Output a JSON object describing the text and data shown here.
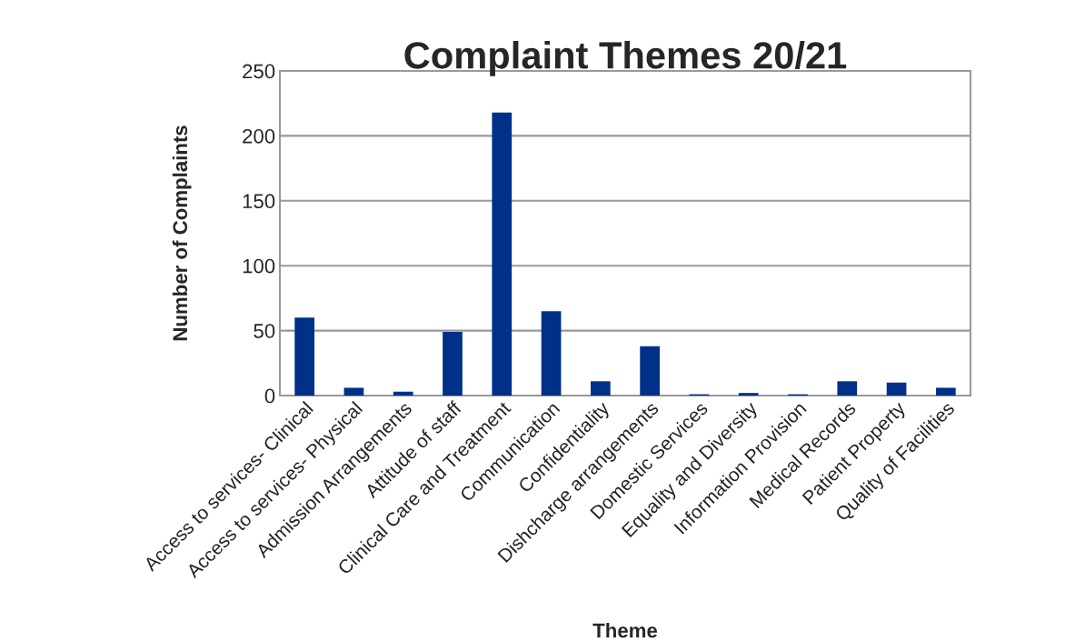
{
  "chart_data": {
    "type": "bar",
    "title": "Complaint Themes 20/21",
    "xlabel": "Theme",
    "ylabel": "Number of Complaints",
    "categories": [
      "Access to services- Clinical",
      "Access to services- Physical",
      "Admission Arrangements",
      "Attitude of staff",
      "Clinical Care and Treatment",
      "Communication",
      "Confidentiality",
      "Dishcharge arrangements",
      "Domestic Services",
      "Equality and Diversity",
      "Information Provision",
      "Medical Records",
      "Patient Property",
      "Quality of Facilities"
    ],
    "values": [
      60,
      6,
      3,
      49,
      218,
      65,
      11,
      38,
      1,
      2,
      1,
      11,
      10,
      6
    ],
    "color": "#003087",
    "ylim": [
      0,
      250
    ],
    "yticks": [
      0,
      50,
      100,
      150,
      200,
      250
    ],
    "grid": "y"
  }
}
